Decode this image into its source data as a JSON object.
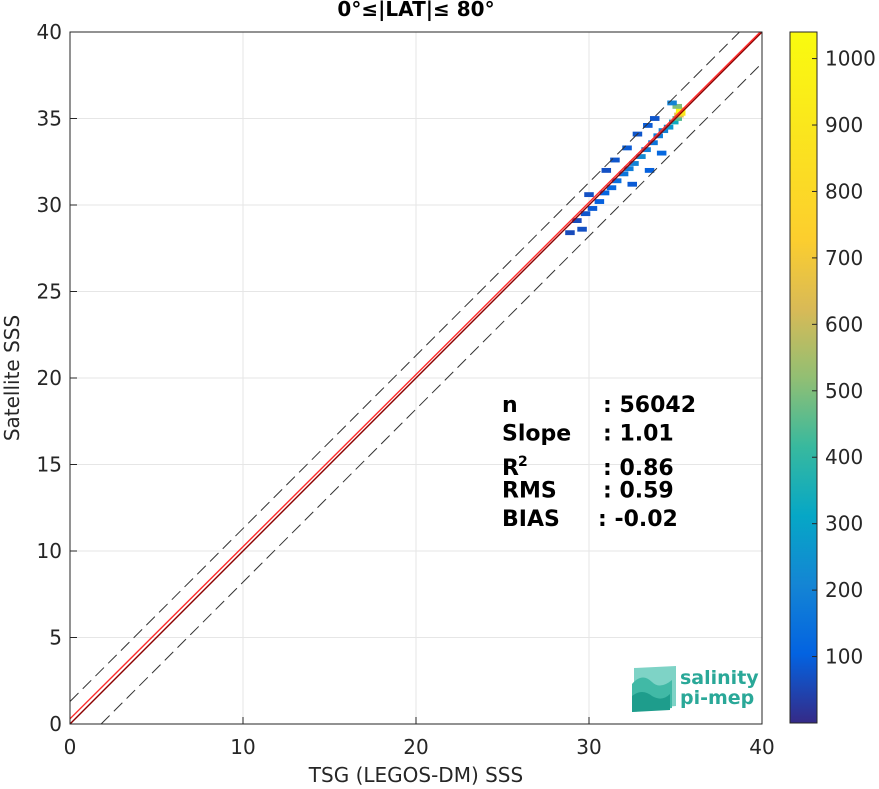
{
  "chart_data": {
    "type": "heatmap",
    "title": "0°≤|LAT|≤ 80°",
    "xlabel": "TSG (LEGOS-DM) SSS",
    "ylabel": "Satellite SSS",
    "xlim": [
      0,
      40
    ],
    "ylim": [
      0,
      40
    ],
    "xticks": [
      "0",
      "10",
      "20",
      "30",
      "40"
    ],
    "yticks": [
      "0",
      "5",
      "10",
      "15",
      "20",
      "25",
      "30",
      "35",
      "40"
    ],
    "grid": true,
    "colorbar": {
      "range": [
        0,
        1040
      ],
      "ticks": [
        "100",
        "200",
        "300",
        "400",
        "500",
        "600",
        "700",
        "800",
        "900",
        "1000"
      ],
      "colormap": "parula"
    },
    "lines": [
      {
        "kind": "identity",
        "style": "solid",
        "color": "#8b0000",
        "x": [
          0,
          40
        ],
        "y": [
          0,
          40
        ]
      },
      {
        "kind": "regression",
        "style": "solid",
        "color": "#ff2a2a",
        "x": [
          0,
          40
        ],
        "y": [
          0.3,
          40.1
        ]
      },
      {
        "kind": "identity_plus_offset",
        "style": "dashed",
        "color": "#333333",
        "x": [
          0,
          40
        ],
        "y": [
          1.3,
          41.3
        ]
      },
      {
        "kind": "identity_minus_offset",
        "style": "dashed",
        "color": "#333333",
        "x": [
          1.8,
          40
        ],
        "y": [
          0,
          38.2
        ]
      }
    ],
    "density_cells": [
      {
        "x": 28.9,
        "y": 28.4,
        "count": 60
      },
      {
        "x": 29.6,
        "y": 28.6,
        "count": 70
      },
      {
        "x": 29.3,
        "y": 29.1,
        "count": 60
      },
      {
        "x": 29.8,
        "y": 29.5,
        "count": 80
      },
      {
        "x": 30.2,
        "y": 29.8,
        "count": 90
      },
      {
        "x": 30.6,
        "y": 30.2,
        "count": 100
      },
      {
        "x": 30.0,
        "y": 30.6,
        "count": 70
      },
      {
        "x": 30.9,
        "y": 30.7,
        "count": 110
      },
      {
        "x": 31.3,
        "y": 31.0,
        "count": 120
      },
      {
        "x": 31.6,
        "y": 31.4,
        "count": 140
      },
      {
        "x": 32.0,
        "y": 31.8,
        "count": 160
      },
      {
        "x": 32.3,
        "y": 32.1,
        "count": 180
      },
      {
        "x": 32.6,
        "y": 32.4,
        "count": 200
      },
      {
        "x": 33.0,
        "y": 32.8,
        "count": 220
      },
      {
        "x": 33.3,
        "y": 33.2,
        "count": 180
      },
      {
        "x": 33.7,
        "y": 33.6,
        "count": 160
      },
      {
        "x": 34.0,
        "y": 34.0,
        "count": 180
      },
      {
        "x": 34.3,
        "y": 34.3,
        "count": 200
      },
      {
        "x": 34.6,
        "y": 34.5,
        "count": 260
      },
      {
        "x": 34.9,
        "y": 34.8,
        "count": 330
      },
      {
        "x": 35.1,
        "y": 35.0,
        "count": 450
      },
      {
        "x": 35.2,
        "y": 35.2,
        "count": 650
      },
      {
        "x": 35.3,
        "y": 35.3,
        "count": 900
      },
      {
        "x": 35.3,
        "y": 35.5,
        "count": 1000
      },
      {
        "x": 35.1,
        "y": 35.7,
        "count": 500
      },
      {
        "x": 34.8,
        "y": 35.9,
        "count": 200
      },
      {
        "x": 32.2,
        "y": 33.3,
        "count": 90
      },
      {
        "x": 32.8,
        "y": 34.1,
        "count": 80
      },
      {
        "x": 33.4,
        "y": 34.6,
        "count": 90
      },
      {
        "x": 31.5,
        "y": 32.6,
        "count": 80
      },
      {
        "x": 32.5,
        "y": 31.2,
        "count": 90
      },
      {
        "x": 33.5,
        "y": 32.0,
        "count": 100
      },
      {
        "x": 34.2,
        "y": 33.0,
        "count": 120
      },
      {
        "x": 31.0,
        "y": 32.0,
        "count": 70
      },
      {
        "x": 33.8,
        "y": 35.0,
        "count": 80
      }
    ],
    "stats": [
      {
        "label": "n",
        "value": ": 56042"
      },
      {
        "label": "Slope",
        "value": ": 1.01"
      },
      {
        "label": "R",
        "sup": "2",
        "value": ": 0.86"
      },
      {
        "label": "RMS",
        "value": ": 0.59"
      },
      {
        "label": "BIAS",
        "value": ": -0.02"
      }
    ]
  },
  "logo": {
    "line1": "salinity",
    "line2": "pi-mep",
    "color": "#2aa898"
  }
}
